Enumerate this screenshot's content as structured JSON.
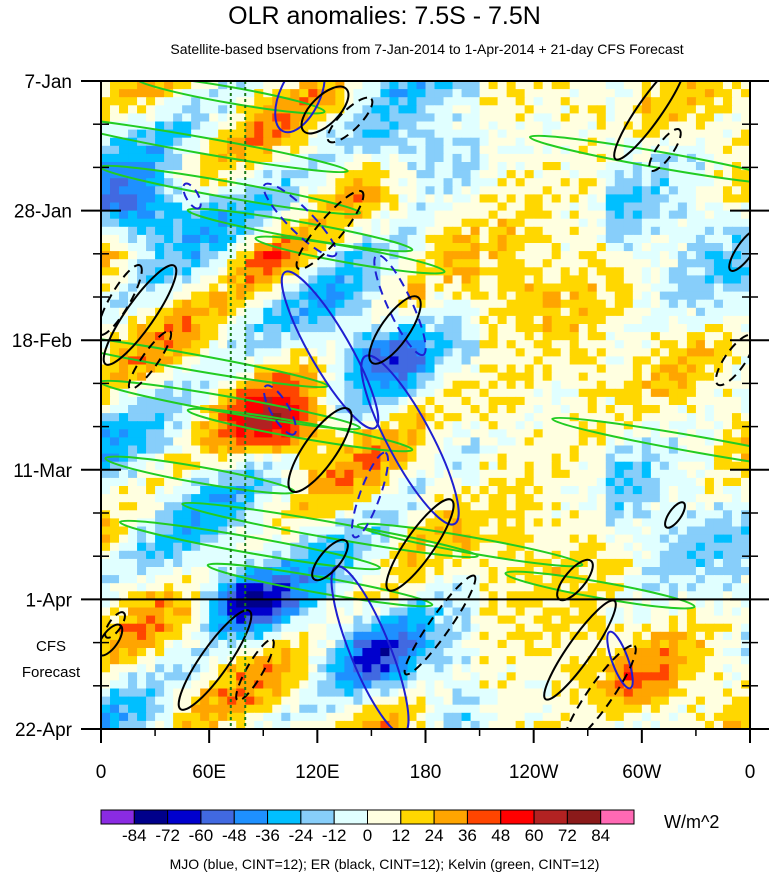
{
  "chart_data": {
    "type": "heatmap",
    "title": "OLR anomalies: 7.5S - 7.5N",
    "subtitle": "Satellite-based bservations from 7-Jan-2014 to 1-Apr-2014 + 21-day CFS Forecast",
    "y_tick_labels": [
      "7-Jan",
      "28-Jan",
      "18-Feb",
      "11-Mar",
      "1-Apr",
      "22-Apr"
    ],
    "x_tick_labels": [
      "0",
      "60E",
      "120E",
      "180",
      "120W",
      "60W",
      "0"
    ],
    "x_range_deg_east": [
      0,
      360
    ],
    "y_range_dates": [
      "2014-01-07",
      "2014-04-22"
    ],
    "observation_end": "1-Apr",
    "forecast_labels": [
      "CFS",
      "Forecast"
    ],
    "colorbar": {
      "unit": "W/m^2",
      "labels": [
        "-84",
        "-72",
        "-60",
        "-48",
        "-36",
        "-24",
        "-12",
        "0",
        "12",
        "24",
        "36",
        "48",
        "60",
        "72",
        "84"
      ],
      "colors": [
        "#8a2be2",
        "#00008b",
        "#0000cd",
        "#4169e1",
        "#1e90ff",
        "#00bfff",
        "#87cefa",
        "#e0ffff",
        "#ffffe0",
        "#ffd700",
        "#ffa500",
        "#ff4500",
        "#ff0000",
        "#b22222",
        "#8b1a1a",
        "#ff69b4"
      ]
    },
    "caption": "MJO (blue, CINT=12); ER (black, CINT=12); Kelvin (green, CINT=12)",
    "reference_longitudes_deg_east": [
      72,
      80
    ],
    "sample_anomalies": [
      {
        "lon": 20,
        "date": "2014-01-28",
        "value": -48
      },
      {
        "lon": 95,
        "date": "2014-02-05",
        "value": 36
      },
      {
        "lon": 100,
        "date": "2014-03-04",
        "value": 48
      },
      {
        "lon": 150,
        "date": "2014-02-20",
        "value": -36
      },
      {
        "lon": 170,
        "date": "2014-01-20",
        "value": -36
      },
      {
        "lon": 210,
        "date": "2014-02-28",
        "value": 24
      },
      {
        "lon": 230,
        "date": "2014-02-10",
        "value": 12
      },
      {
        "lon": 300,
        "date": "2014-04-15",
        "value": 24
      },
      {
        "lon": 80,
        "date": "2014-04-01",
        "value": -60
      },
      {
        "lon": 150,
        "date": "2014-04-10",
        "value": -36
      }
    ]
  }
}
